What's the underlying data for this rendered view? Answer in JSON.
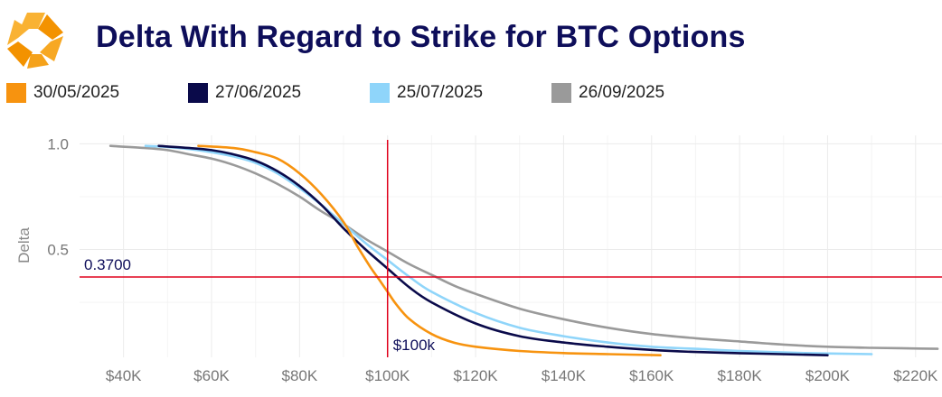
{
  "title": "Delta With Regard to Strike for BTC Options",
  "colors": {
    "title": "#0e0e5a",
    "reference_line": "#e0001b",
    "grid": "#ebebeb",
    "logo_orange": "#f5a21b"
  },
  "chart_data": {
    "type": "line",
    "title": "Delta With Regard to Strike for BTC Options",
    "xlabel": "",
    "ylabel": "Delta",
    "xlim": [
      30000,
      226000
    ],
    "ylim": [
      -0.01,
      1.04
    ],
    "x_ticks": [
      40000,
      60000,
      80000,
      100000,
      120000,
      140000,
      160000,
      180000,
      200000,
      220000
    ],
    "x_tick_labels": [
      "$40K",
      "$60K",
      "$80K",
      "$100K",
      "$120K",
      "$140K",
      "$160K",
      "$180K",
      "$200K",
      "$220K"
    ],
    "y_ticks": [
      0.5,
      1.0
    ],
    "y_tick_labels": [
      "0.5",
      "1.0"
    ],
    "grid": true,
    "legend_position": "top-left",
    "series": [
      {
        "name": "30/05/2025",
        "color": "#f7930f",
        "x": [
          57000,
          65000,
          70000,
          75000,
          80000,
          85000,
          90000,
          93000,
          96000,
          98000,
          100000,
          102000,
          105000,
          110000,
          115000,
          120000,
          130000,
          140000,
          150000,
          162000
        ],
        "y": [
          0.99,
          0.98,
          0.96,
          0.93,
          0.86,
          0.76,
          0.63,
          0.52,
          0.42,
          0.36,
          0.3,
          0.24,
          0.17,
          0.1,
          0.06,
          0.04,
          0.02,
          0.01,
          0.005,
          0.0
        ]
      },
      {
        "name": "27/06/2025",
        "color": "#0a0a4a",
        "x": [
          48000,
          55000,
          60000,
          65000,
          70000,
          75000,
          80000,
          85000,
          90000,
          95000,
          100000,
          105000,
          110000,
          120000,
          130000,
          140000,
          150000,
          160000,
          170000,
          185000,
          200000
        ],
        "y": [
          0.99,
          0.98,
          0.97,
          0.95,
          0.92,
          0.87,
          0.8,
          0.71,
          0.6,
          0.5,
          0.41,
          0.32,
          0.25,
          0.15,
          0.09,
          0.06,
          0.04,
          0.025,
          0.015,
          0.007,
          0.0
        ]
      },
      {
        "name": "25/07/2025",
        "color": "#8fd5fa",
        "x": [
          45000,
          50000,
          55000,
          60000,
          65000,
          70000,
          75000,
          80000,
          85000,
          90000,
          95000,
          100000,
          105000,
          110000,
          120000,
          130000,
          140000,
          150000,
          160000,
          170000,
          180000,
          195000,
          210000
        ],
        "y": [
          0.99,
          0.985,
          0.975,
          0.96,
          0.94,
          0.91,
          0.86,
          0.79,
          0.71,
          0.62,
          0.53,
          0.45,
          0.37,
          0.3,
          0.2,
          0.13,
          0.09,
          0.06,
          0.04,
          0.03,
          0.02,
          0.01,
          0.005
        ]
      },
      {
        "name": "26/09/2025",
        "color": "#9a9a9a",
        "x": [
          37000,
          45000,
          50000,
          55000,
          60000,
          65000,
          70000,
          75000,
          80000,
          85000,
          90000,
          95000,
          100000,
          105000,
          110000,
          115000,
          120000,
          130000,
          140000,
          150000,
          160000,
          170000,
          180000,
          190000,
          200000,
          210000,
          225000
        ],
        "y": [
          0.99,
          0.98,
          0.97,
          0.95,
          0.93,
          0.9,
          0.86,
          0.81,
          0.75,
          0.68,
          0.62,
          0.55,
          0.49,
          0.43,
          0.38,
          0.33,
          0.29,
          0.22,
          0.17,
          0.13,
          0.1,
          0.08,
          0.065,
          0.05,
          0.04,
          0.035,
          0.03
        ]
      }
    ],
    "reference_lines": {
      "horizontal": {
        "y": 0.37,
        "label": "0.3700"
      },
      "vertical": {
        "x": 100000,
        "label": "$100k"
      }
    }
  }
}
